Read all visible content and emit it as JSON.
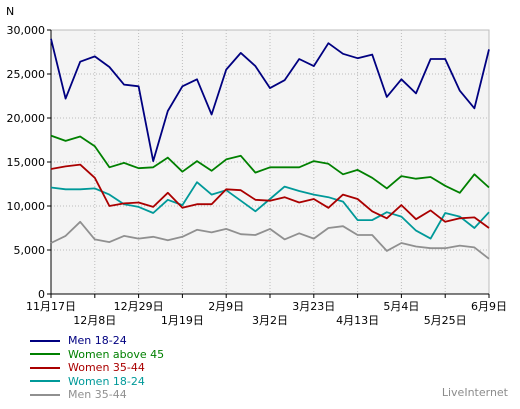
{
  "brand": "LiveInternet",
  "chart_data": {
    "type": "line",
    "ylabel": "N",
    "ylim": [
      0,
      30000
    ],
    "yticks": [
      0,
      5000,
      10000,
      15000,
      20000,
      25000,
      30000
    ],
    "ytick_labels": [
      "0",
      "5,000",
      "10,000",
      "15,000",
      "20,000",
      "25,000",
      "30,000"
    ],
    "xtick_labels_upper": [
      {
        "i": 0,
        "label": "11月17日"
      },
      {
        "i": 6,
        "label": "12月29日"
      },
      {
        "i": 12,
        "label": "2月9日"
      },
      {
        "i": 18,
        "label": "3月23日"
      },
      {
        "i": 24,
        "label": "5月4日"
      },
      {
        "i": 30,
        "label": "6月9日"
      }
    ],
    "xtick_labels_lower": [
      {
        "i": 3,
        "label": "12月8日"
      },
      {
        "i": 9,
        "label": "1月19日"
      },
      {
        "i": 15,
        "label": "3月2日"
      },
      {
        "i": 21,
        "label": "4月13日"
      },
      {
        "i": 27,
        "label": "5月25日"
      }
    ],
    "n_points": 31,
    "grid": true,
    "legend_position": "bottom-left",
    "series": [
      {
        "name": "Men 18-24",
        "color": "#000080",
        "values": [
          29000,
          22200,
          26400,
          27000,
          25800,
          23800,
          23600,
          15100,
          20800,
          23600,
          24400,
          20400,
          25500,
          27400,
          25900,
          23400,
          24300,
          26700,
          25900,
          28500,
          27300,
          26800,
          27200,
          22400,
          24400,
          22800,
          26700,
          26700,
          23100,
          21100,
          27800
        ]
      },
      {
        "name": "Women above 45",
        "color": "#008000",
        "values": [
          18000,
          17400,
          17900,
          16800,
          14400,
          14900,
          14300,
          14400,
          15500,
          13900,
          15100,
          14000,
          15300,
          15700,
          13800,
          14400,
          14400,
          14400,
          15100,
          14800,
          13600,
          14100,
          13200,
          12000,
          13400,
          13100,
          13300,
          12300,
          11500,
          13600,
          12100
        ]
      },
      {
        "name": "Women 35-44",
        "color": "#aa0000",
        "values": [
          14200,
          14500,
          14700,
          13200,
          10000,
          10300,
          10400,
          9900,
          11500,
          9800,
          10200,
          10200,
          11900,
          11800,
          10700,
          10600,
          11000,
          10400,
          10800,
          9800,
          11300,
          10800,
          9400,
          8600,
          10100,
          8500,
          9500,
          8200,
          8600,
          8700,
          7500
        ]
      },
      {
        "name": "Women 18-24",
        "color": "#009999",
        "values": [
          12100,
          11900,
          11900,
          12000,
          11300,
          10200,
          9900,
          9200,
          10700,
          10100,
          12700,
          11300,
          11800,
          10600,
          9400,
          10800,
          12200,
          11700,
          11300,
          11000,
          10500,
          8400,
          8400,
          9300,
          8800,
          7200,
          6300,
          9200,
          8800,
          7500,
          9300
        ]
      },
      {
        "name": "Men 35-44",
        "color": "#909090",
        "values": [
          5800,
          6600,
          8200,
          6200,
          5900,
          6600,
          6300,
          6500,
          6100,
          6500,
          7300,
          7000,
          7400,
          6800,
          6700,
          7400,
          6200,
          6900,
          6300,
          7500,
          7700,
          6700,
          6700,
          4900,
          5800,
          5400,
          5200,
          5200,
          5500,
          5300,
          4000
        ]
      }
    ]
  }
}
